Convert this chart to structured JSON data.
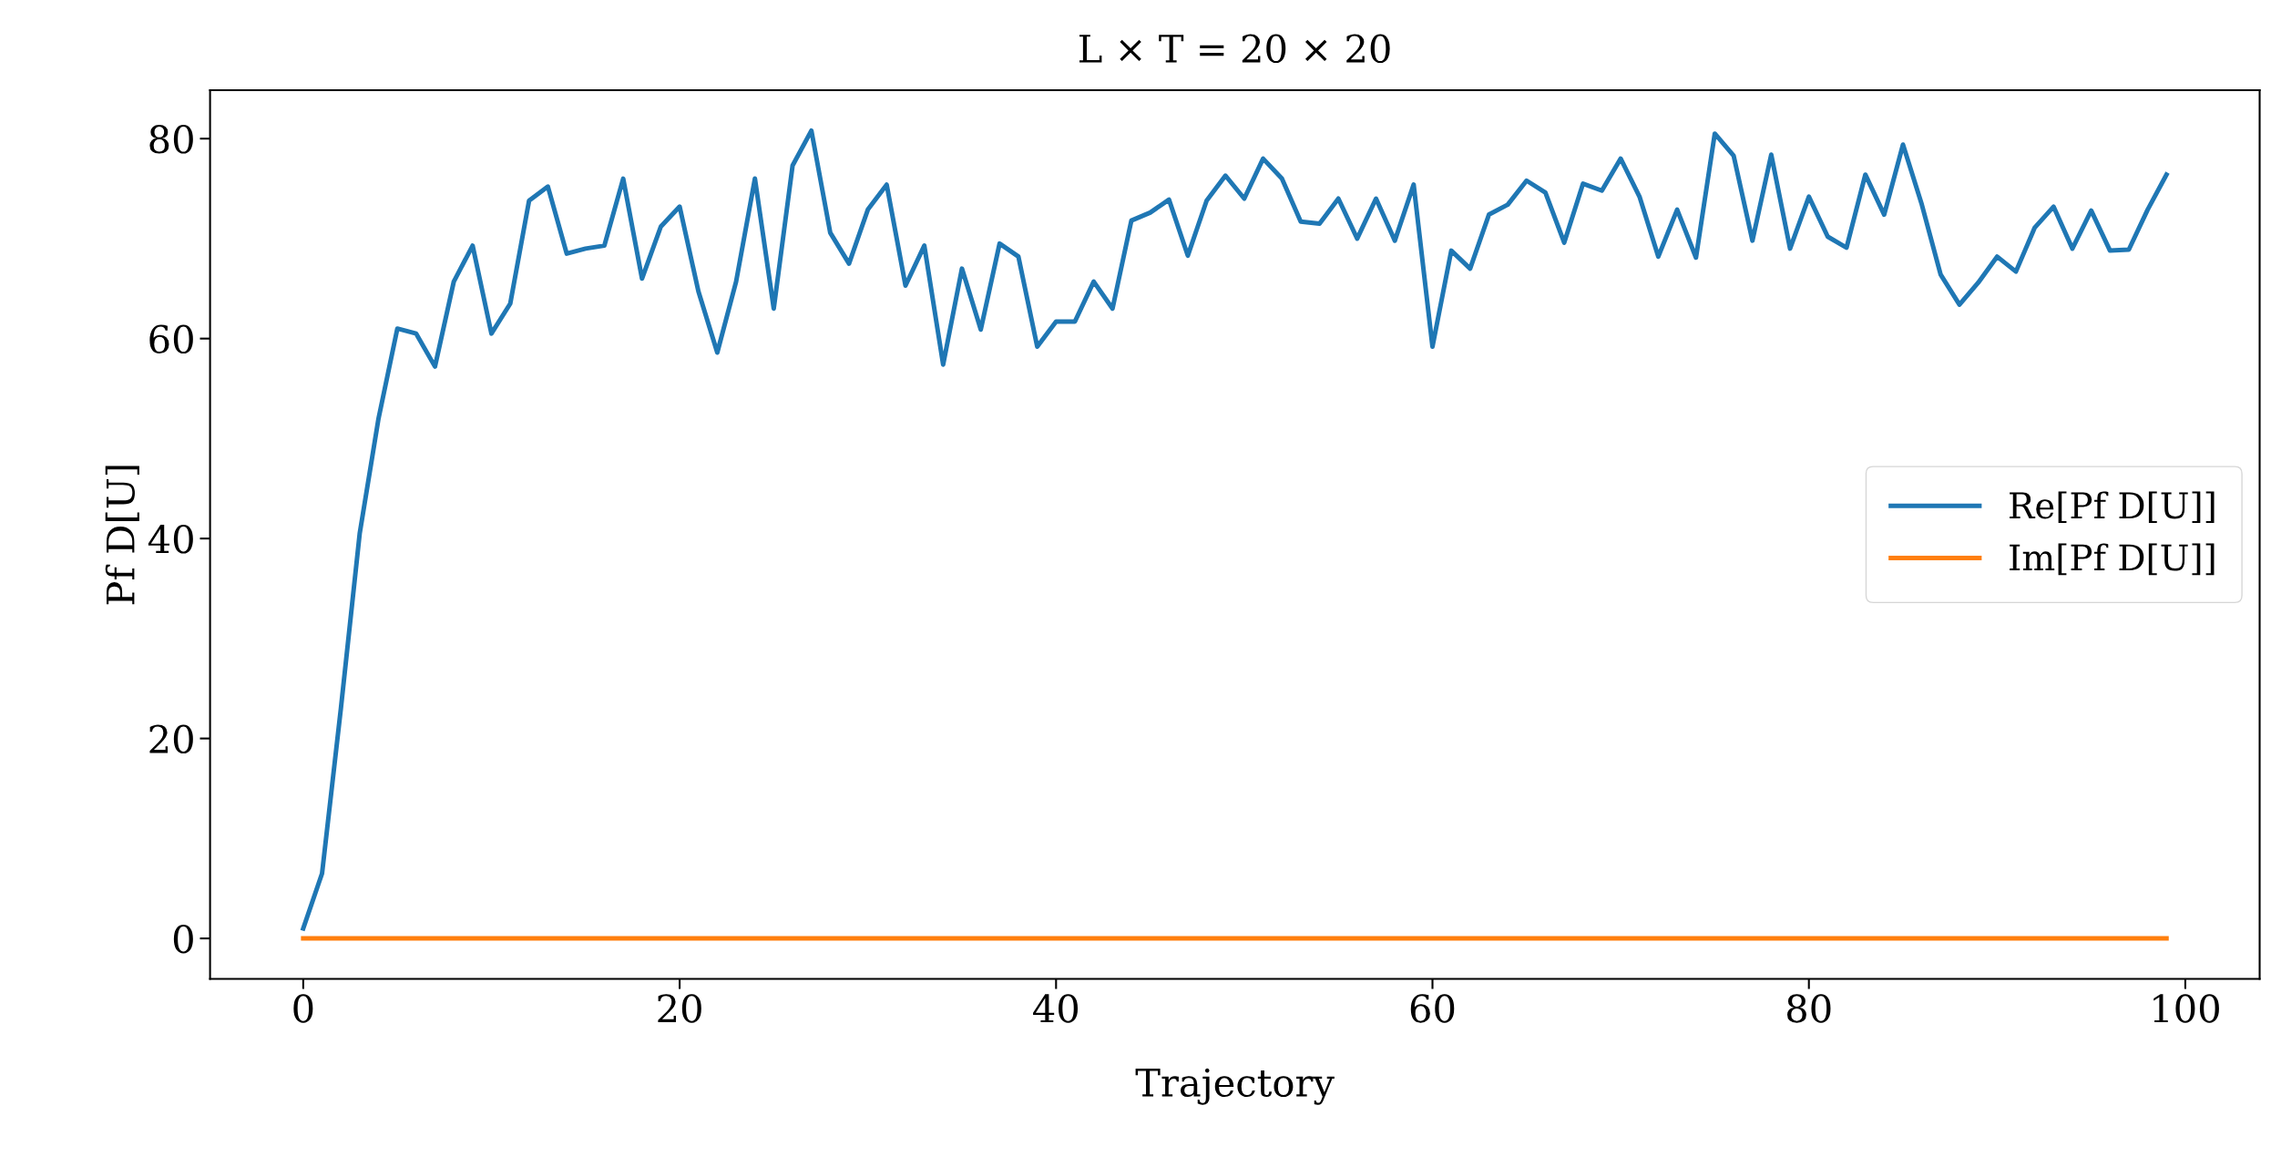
{
  "chart_data": {
    "type": "line",
    "title": "L × T = 20 × 20",
    "xlabel": "Trajectory",
    "ylabel": "Pf D[U]",
    "x": [
      0,
      1,
      2,
      3,
      4,
      5,
      6,
      7,
      8,
      9,
      10,
      11,
      12,
      13,
      14,
      15,
      16,
      17,
      18,
      19,
      20,
      21,
      22,
      23,
      24,
      25,
      26,
      27,
      28,
      29,
      30,
      31,
      32,
      33,
      34,
      35,
      36,
      37,
      38,
      39,
      40,
      41,
      42,
      43,
      44,
      45,
      46,
      47,
      48,
      49,
      50,
      51,
      52,
      53,
      54,
      55,
      56,
      57,
      58,
      59,
      60,
      61,
      62,
      63,
      64,
      65,
      66,
      67,
      68,
      69,
      70,
      71,
      72,
      73,
      74,
      75,
      76,
      77,
      78,
      79,
      80,
      81,
      82,
      83,
      84,
      85,
      86,
      87,
      88,
      89,
      90,
      91,
      92,
      93,
      94,
      95,
      96,
      97,
      98,
      99
    ],
    "series": [
      {
        "name": "Re[Pf D[U]]",
        "color": "#1f77b4",
        "values": [
          1,
          6.5,
          23,
          40.5,
          52,
          61,
          60.5,
          57.2,
          65.7,
          69.3,
          60.5,
          63.5,
          73.8,
          75.2,
          68.5,
          69,
          69.3,
          76,
          66,
          71.2,
          73.2,
          64.7,
          58.6,
          65.7,
          76,
          63,
          77.3,
          80.8,
          70.6,
          67.5,
          72.9,
          75.4,
          65.3,
          69.3,
          57.4,
          67,
          60.9,
          69.5,
          68.2,
          59.2,
          61.7,
          61.7,
          65.7,
          63,
          71.8,
          72.6,
          73.9,
          68.3,
          73.8,
          76.3,
          74,
          78,
          76,
          71.7,
          71.5,
          74,
          70,
          74,
          69.8,
          75.4,
          59.2,
          68.8,
          67,
          72.4,
          73.4,
          75.8,
          74.6,
          69.6,
          75.5,
          74.8,
          78,
          74.2,
          68.2,
          72.9,
          68.1,
          80.5,
          78.3,
          69.8,
          78.4,
          69,
          74.2,
          70.2,
          69.1,
          76.4,
          72.4,
          79.4,
          73.4,
          66.4,
          63.4,
          65.6,
          68.2,
          66.7,
          71.1,
          73.2,
          69,
          72.8,
          68.8,
          68.9,
          72.9,
          76.4
        ]
      },
      {
        "name": "Im[Pf D[U]]",
        "color": "#ff7f0e",
        "values": [
          0,
          0,
          0,
          0,
          0,
          0,
          0,
          0,
          0,
          0,
          0,
          0,
          0,
          0,
          0,
          0,
          0,
          0,
          0,
          0,
          0,
          0,
          0,
          0,
          0,
          0,
          0,
          0,
          0,
          0,
          0,
          0,
          0,
          0,
          0,
          0,
          0,
          0,
          0,
          0,
          0,
          0,
          0,
          0,
          0,
          0,
          0,
          0,
          0,
          0,
          0,
          0,
          0,
          0,
          0,
          0,
          0,
          0,
          0,
          0,
          0,
          0,
          0,
          0,
          0,
          0,
          0,
          0,
          0,
          0,
          0,
          0,
          0,
          0,
          0,
          0,
          0,
          0,
          0,
          0,
          0,
          0,
          0,
          0,
          0,
          0,
          0,
          0,
          0,
          0,
          0,
          0,
          0,
          0,
          0,
          0,
          0,
          0,
          0,
          0
        ]
      }
    ],
    "xlim": [
      -4.95,
      103.95
    ],
    "xticks": [
      0,
      20,
      40,
      60,
      80,
      100
    ],
    "ylim": [
      -4.04,
      84.84
    ],
    "yticks": [
      0,
      20,
      40,
      60,
      80
    ],
    "grid": false,
    "legend": "right",
    "marker": "none",
    "line_style": "solid"
  }
}
